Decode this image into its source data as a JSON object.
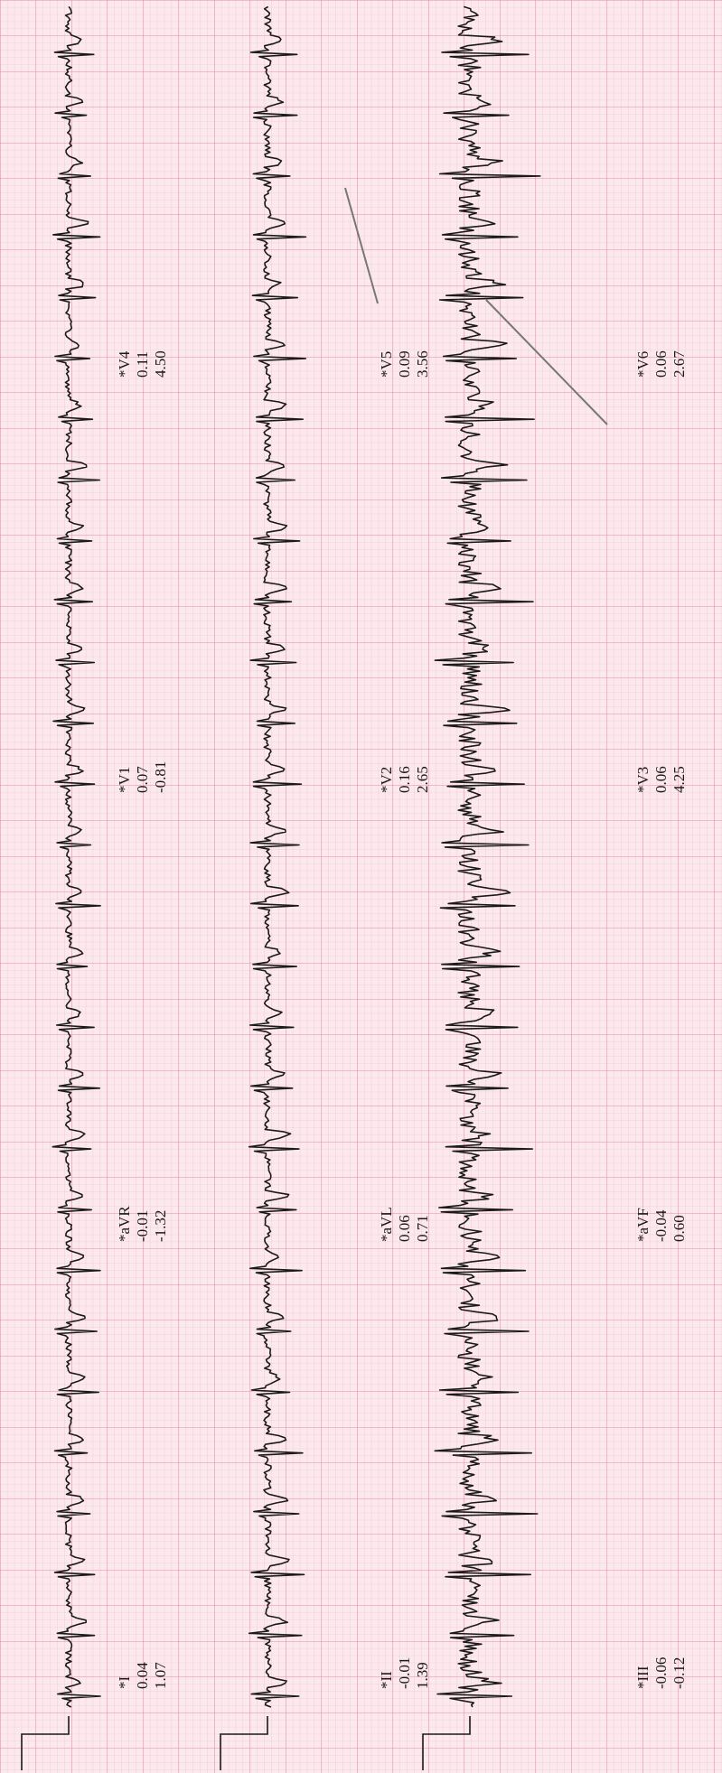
{
  "colors": {
    "paper": "#fbe9ee",
    "grid_minor": "#f2b7c6",
    "grid_major": "#e58aa2",
    "trace": "#1a1a1a",
    "line_marker": "#777777"
  },
  "leads": [
    {
      "id": "I",
      "name": "*I",
      "v1": "0.04",
      "v2": "1.07"
    },
    {
      "id": "aVR",
      "name": "*aVR",
      "v1": "-0.01",
      "v2": "-1.32"
    },
    {
      "id": "V1",
      "name": "*V1",
      "v1": "0.07",
      "v2": "-0.81"
    },
    {
      "id": "V4",
      "name": "*V4",
      "v1": "0.11",
      "v2": "4.50"
    },
    {
      "id": "II",
      "name": "*II",
      "v1": "-0.01",
      "v2": "1.39"
    },
    {
      "id": "aVL",
      "name": "*aVL",
      "v1": "0.06",
      "v2": "0.71"
    },
    {
      "id": "V2",
      "name": "*V2",
      "v1": "0.16",
      "v2": "2.65"
    },
    {
      "id": "V5",
      "name": "*V5",
      "v1": "0.09",
      "v2": "3.56"
    },
    {
      "id": "III",
      "name": "*III",
      "v1": "-0.06",
      "v2": "-0.12"
    },
    {
      "id": "aVF",
      "name": "*aVF",
      "v1": "-0.04",
      "v2": "0.60"
    },
    {
      "id": "V3",
      "name": "*V3",
      "v1": "0.06",
      "v2": "4.25"
    },
    {
      "id": "V6",
      "name": "*V6",
      "v1": "0.06",
      "v2": "2.67"
    }
  ]
}
